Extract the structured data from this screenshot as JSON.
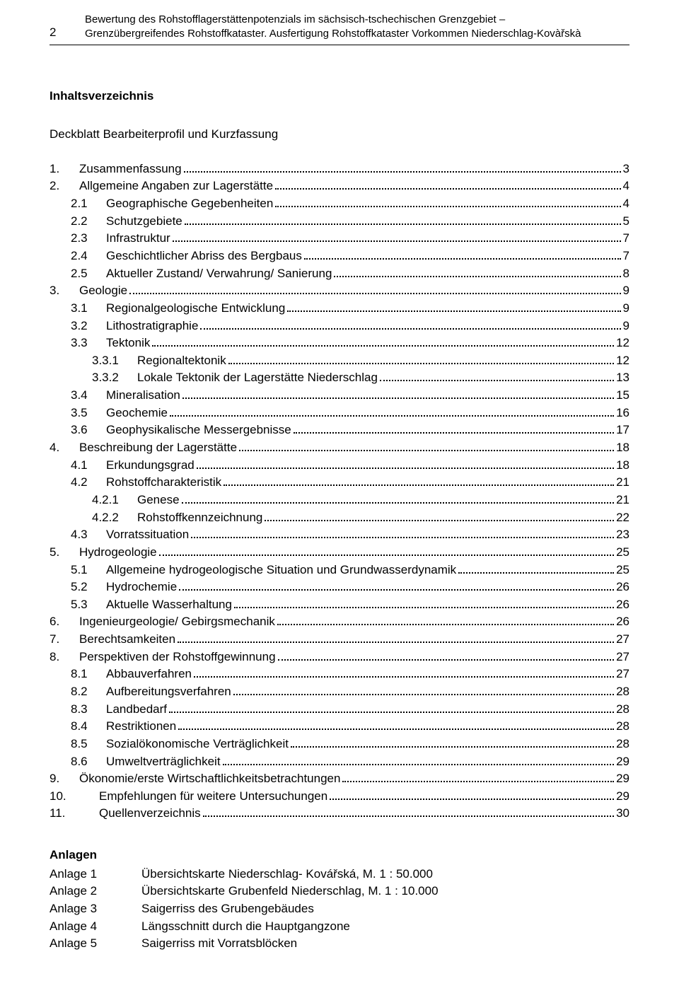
{
  "page_number": "2",
  "header_line1": "Bewertung des Rohstofflagerstättenpotenzials im sächsisch-tschechischen Grenzgebiet –",
  "header_line2": "Grenzübergreifendes Rohstoffkataster. Ausfertigung Rohstoffkataster Vorkommen Niederschlag-Kovàřskà",
  "toc_title": "Inhaltsverzeichnis",
  "subtitle": "Deckblatt Bearbeiterprofil und Kurzfassung",
  "toc": [
    {
      "indent": 0,
      "num": "1.",
      "numw": 42,
      "label": "Zusammenfassung",
      "page": "3"
    },
    {
      "indent": 0,
      "num": "2.",
      "numw": 42,
      "label": "Allgemeine Angaben zur Lagerstätte",
      "page": "4"
    },
    {
      "indent": 1,
      "num": "2.1",
      "numw": 50,
      "label": "Geographische Gegebenheiten",
      "page": "4"
    },
    {
      "indent": 1,
      "num": "2.2",
      "numw": 50,
      "label": "Schutzgebiete",
      "page": "5"
    },
    {
      "indent": 1,
      "num": "2.3",
      "numw": 50,
      "label": "Infrastruktur",
      "page": "7"
    },
    {
      "indent": 1,
      "num": "2.4",
      "numw": 50,
      "label": "Geschichtlicher Abriss des Bergbaus",
      "page": "7"
    },
    {
      "indent": 1,
      "num": "2.5",
      "numw": 50,
      "label": "Aktueller Zustand/ Verwahrung/ Sanierung",
      "page": "8"
    },
    {
      "indent": 0,
      "num": "3.",
      "numw": 42,
      "label": "Geologie",
      "page": "9"
    },
    {
      "indent": 1,
      "num": "3.1",
      "numw": 50,
      "label": "Regionalgeologische Entwicklung",
      "page": "9"
    },
    {
      "indent": 1,
      "num": "3.2",
      "numw": 50,
      "label": "Lithostratigraphie",
      "page": "9"
    },
    {
      "indent": 1,
      "num": "3.3",
      "numw": 50,
      "label": "Tektonik",
      "page": "12"
    },
    {
      "indent": 2,
      "num": "3.3.1",
      "numw": 64,
      "label": "Regionaltektonik",
      "page": "12"
    },
    {
      "indent": 2,
      "num": "3.3.2",
      "numw": 64,
      "label": "Lokale Tektonik der Lagerstätte Niederschlag",
      "page": "13"
    },
    {
      "indent": 1,
      "num": "3.4",
      "numw": 50,
      "label": "Mineralisation",
      "page": "15"
    },
    {
      "indent": 1,
      "num": "3.5",
      "numw": 50,
      "label": "Geochemie",
      "page": "16"
    },
    {
      "indent": 1,
      "num": "3.6",
      "numw": 50,
      "label": "Geophysikalische Messergebnisse",
      "page": "17"
    },
    {
      "indent": 0,
      "num": "4.",
      "numw": 42,
      "label": "Beschreibung der Lagerstätte",
      "page": "18"
    },
    {
      "indent": 1,
      "num": "4.1",
      "numw": 50,
      "label": "Erkundungsgrad",
      "page": "18"
    },
    {
      "indent": 1,
      "num": "4.2",
      "numw": 50,
      "label": "Rohstoffcharakteristik",
      "page": "21"
    },
    {
      "indent": 2,
      "num": "4.2.1",
      "numw": 64,
      "label": "Genese",
      "page": "21"
    },
    {
      "indent": 2,
      "num": "4.2.2",
      "numw": 64,
      "label": "Rohstoffkennzeichnung",
      "page": "22"
    },
    {
      "indent": 1,
      "num": "4.3",
      "numw": 50,
      "label": "Vorratssituation",
      "page": "23"
    },
    {
      "indent": 0,
      "num": "5.",
      "numw": 42,
      "label": "Hydrogeologie",
      "page": "25"
    },
    {
      "indent": 1,
      "num": "5.1",
      "numw": 50,
      "label": "Allgemeine hydrogeologische Situation und Grundwasserdynamik",
      "page": "25"
    },
    {
      "indent": 1,
      "num": "5.2",
      "numw": 50,
      "label": "Hydrochemie",
      "page": "26"
    },
    {
      "indent": 1,
      "num": "5.3",
      "numw": 50,
      "label": "Aktuelle Wasserhaltung",
      "page": "26"
    },
    {
      "indent": 0,
      "num": "6.",
      "numw": 42,
      "label": "Ingenieurgeologie/ Gebirgsmechanik",
      "page": "26"
    },
    {
      "indent": 0,
      "num": "7.",
      "numw": 42,
      "label": "Berechtsamkeiten",
      "page": "27"
    },
    {
      "indent": 0,
      "num": "8.",
      "numw": 42,
      "label": "Perspektiven der Rohstoffgewinnung",
      "page": "27"
    },
    {
      "indent": 1,
      "num": "8.1",
      "numw": 50,
      "label": "Abbauverfahren",
      "page": "27"
    },
    {
      "indent": 1,
      "num": "8.2",
      "numw": 50,
      "label": "Aufbereitungsverfahren",
      "page": "28"
    },
    {
      "indent": 1,
      "num": "8.3",
      "numw": 50,
      "label": "Landbedarf",
      "page": "28"
    },
    {
      "indent": 1,
      "num": "8.4",
      "numw": 50,
      "label": "Restriktionen",
      "page": "28"
    },
    {
      "indent": 1,
      "num": "8.5",
      "numw": 50,
      "label": "Sozialökonomische Verträglichkeit",
      "page": "28"
    },
    {
      "indent": 1,
      "num": "8.6",
      "numw": 50,
      "label": "Umweltverträglichkeit",
      "page": "29"
    },
    {
      "indent": 0,
      "num": "9.",
      "numw": 42,
      "label": "Ökonomie/erste Wirtschaftlichkeitsbetrachtungen",
      "page": "29"
    },
    {
      "indent": 0,
      "num": "10.",
      "numw": 70,
      "label": "Empfehlungen für weitere Untersuchungen",
      "page": "29"
    },
    {
      "indent": 0,
      "num": "11.",
      "numw": 70,
      "label": "Quellenverzeichnis",
      "page": "30"
    }
  ],
  "anlagen_title": "Anlagen",
  "anlagen": [
    {
      "key": "Anlage 1",
      "val": "Übersichtskarte Niederschlag- Kovářská, M. 1 : 50.000"
    },
    {
      "key": "Anlage 2",
      "val": "Übersichtskarte Grubenfeld Niederschlag, M. 1 : 10.000"
    },
    {
      "key": "Anlage 3",
      "val": "Saigerriss des Grubengebäudes"
    },
    {
      "key": "Anlage 4",
      "val": "Längsschnitt durch die Hauptgangzone"
    },
    {
      "key": "Anlage 5",
      "val": "Saigerriss mit Vorratsblöcken"
    }
  ],
  "colors": {
    "text": "#000000",
    "background": "#ffffff",
    "rule": "#000000"
  },
  "fonts": {
    "family": "Arial",
    "body_pt": 12,
    "header_pt": 11
  }
}
